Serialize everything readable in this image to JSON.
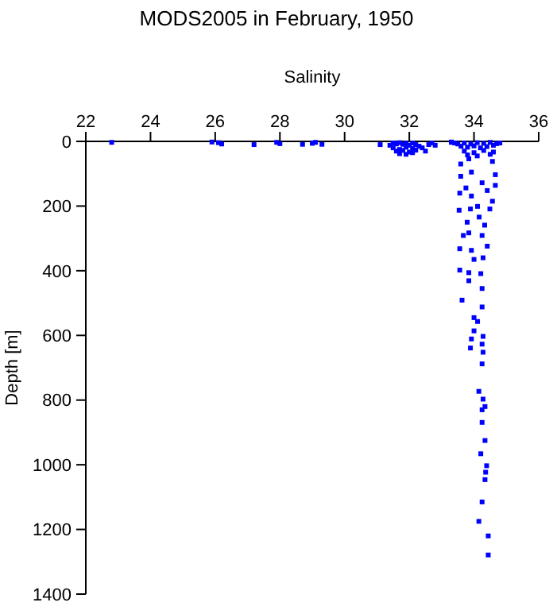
{
  "chart_data": {
    "type": "scatter",
    "title": "MODS2005 in February, 1950",
    "xlabel": "Salinity",
    "ylabel": "Depth [m]",
    "xlim": [
      22,
      36
    ],
    "xticks": [
      22,
      24,
      26,
      28,
      30,
      32,
      34,
      36
    ],
    "ylim": [
      1400,
      0
    ],
    "yticks": [
      0,
      200,
      400,
      600,
      800,
      1000,
      1200,
      1400
    ],
    "marker": "square",
    "grid": false,
    "series": [
      {
        "color": "#0000ff",
        "x": [
          22.8,
          25.9,
          26.1,
          26.2,
          27.2,
          27.9,
          28.0,
          28.7,
          29.0,
          29.1,
          29.3,
          31.1,
          31.4,
          31.5,
          31.6,
          31.7,
          31.8,
          31.9,
          32.0,
          32.1,
          32.2,
          31.5,
          31.7,
          31.9,
          32.1,
          32.3,
          31.6,
          31.8,
          32.0,
          32.2,
          31.7,
          31.9,
          32.1,
          32.4,
          32.6,
          32.5,
          32.7,
          32.8,
          33.3,
          33.4,
          33.5,
          33.3,
          33.7,
          33.9,
          34.1,
          34.3,
          34.5,
          34.7,
          34.8,
          33.6,
          33.8,
          34.0,
          34.2,
          34.4,
          34.6,
          33.7,
          34.0,
          34.3,
          34.6,
          33.8,
          34.1,
          34.5,
          33.84,
          33.59,
          34.57,
          33.92,
          34.66,
          33.59,
          34.25,
          34.66,
          33.75,
          34.41,
          33.56,
          33.92,
          34.57,
          34.11,
          33.54,
          33.89,
          34.49,
          34.16,
          33.79,
          34.33,
          33.84,
          34.25,
          33.67,
          34.41,
          33.56,
          33.92,
          34.0,
          34.28,
          33.56,
          33.84,
          34.21,
          33.84,
          34.25,
          33.63,
          34.25,
          34.0,
          34.11,
          34.0,
          34.28,
          34.25,
          33.92,
          33.89,
          34.28,
          34.25,
          34.15,
          34.28,
          34.34,
          34.25,
          34.25,
          34.34,
          34.21,
          34.39,
          34.36,
          34.34,
          34.25,
          34.15,
          34.44,
          34.44
        ],
        "values": [
          3,
          2,
          4,
          8,
          10,
          3,
          7,
          9,
          6,
          3,
          9,
          10,
          12,
          5,
          8,
          4,
          9,
          6,
          12,
          5,
          10,
          20,
          25,
          18,
          22,
          15,
          30,
          28,
          33,
          27,
          38,
          40,
          35,
          20,
          10,
          30,
          5,
          12,
          3,
          5,
          8,
          2,
          5,
          8,
          4,
          6,
          3,
          7,
          5,
          15,
          18,
          14,
          20,
          16,
          12,
          30,
          35,
          28,
          33,
          42,
          45,
          40,
          54,
          70,
          62,
          95,
          103,
          108,
          128,
          136,
          144,
          152,
          160,
          169,
          185,
          201,
          213,
          209,
          209,
          234,
          250,
          259,
          283,
          291,
          291,
          324,
          332,
          337,
          365,
          360,
          398,
          406,
          409,
          431,
          455,
          491,
          512,
          545,
          557,
          586,
          603,
          627,
          611,
          639,
          652,
          688,
          773,
          797,
          820,
          830,
          869,
          925,
          966,
          1003,
          1023,
          1046,
          1115,
          1175,
          1220,
          1279
        ]
      }
    ]
  }
}
